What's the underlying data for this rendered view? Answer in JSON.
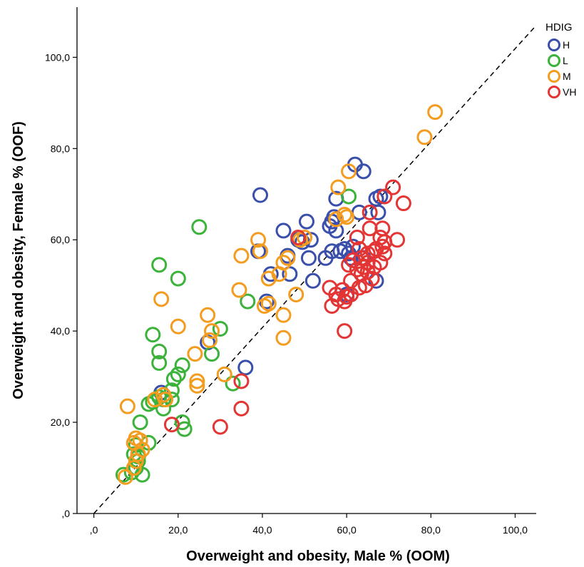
{
  "chart_data": {
    "type": "scatter",
    "xlabel": "Overweight and obesity, Male % (OOM)",
    "ylabel": "Overweight and obesity, Female % (OOF)",
    "xlim": [
      -4,
      105
    ],
    "ylim": [
      0,
      111
    ],
    "x_ticks": [
      ",0",
      "20,0",
      "40,0",
      "60,0",
      "80,0",
      "100,0"
    ],
    "y_ticks": [
      ",0",
      "20,0",
      "40,0",
      "60,0",
      "80,0",
      "100,0"
    ],
    "grid": false,
    "reference_line": {
      "style": "dashed",
      "from": [
        0,
        0
      ],
      "to": [
        105,
        107
      ]
    },
    "legend": {
      "title": "HDIG",
      "position": "top-right"
    },
    "series": [
      {
        "name": "H",
        "color": "#3a4eab",
        "points": [
          [
            62,
            76.5
          ],
          [
            64,
            75
          ],
          [
            67,
            69
          ],
          [
            68,
            69.5
          ],
          [
            57.5,
            69
          ],
          [
            39.5,
            69.8
          ],
          [
            63,
            66
          ],
          [
            67.5,
            66
          ],
          [
            57,
            65
          ],
          [
            56.5,
            64
          ],
          [
            50.5,
            64
          ],
          [
            56,
            63
          ],
          [
            57.5,
            62
          ],
          [
            45,
            62
          ],
          [
            48.5,
            60
          ],
          [
            51.5,
            60
          ],
          [
            49.5,
            59.5
          ],
          [
            61.5,
            58.5
          ],
          [
            59.5,
            58
          ],
          [
            39,
            57.5
          ],
          [
            56.5,
            57.5
          ],
          [
            58.5,
            57.5
          ],
          [
            60.5,
            57
          ],
          [
            46,
            56.5
          ],
          [
            51,
            56
          ],
          [
            55,
            56
          ],
          [
            61,
            56
          ],
          [
            64,
            56
          ],
          [
            42,
            52.5
          ],
          [
            46.5,
            52.5
          ],
          [
            52,
            51
          ],
          [
            67,
            51
          ],
          [
            41,
            46.5
          ],
          [
            60,
            48
          ],
          [
            36,
            32
          ],
          [
            27,
            37.5
          ],
          [
            16,
            26.5
          ]
        ]
      },
      {
        "name": "L",
        "color": "#3bb33b",
        "points": [
          [
            25,
            62.8
          ],
          [
            15.5,
            54.5
          ],
          [
            20,
            51.5
          ],
          [
            60.5,
            69.5
          ],
          [
            36.5,
            46.5
          ],
          [
            14,
            39.2
          ],
          [
            30,
            40.5
          ],
          [
            28,
            35
          ],
          [
            15.5,
            35.5
          ],
          [
            15.5,
            33
          ],
          [
            21,
            32.5
          ],
          [
            20,
            30.5
          ],
          [
            19,
            29.5
          ],
          [
            18.5,
            27
          ],
          [
            15.5,
            25.5
          ],
          [
            18.5,
            25
          ],
          [
            16.5,
            25
          ],
          [
            14,
            24.5
          ],
          [
            13,
            24
          ],
          [
            16.5,
            23
          ],
          [
            13,
            15.5
          ],
          [
            11,
            20
          ],
          [
            21,
            20
          ],
          [
            21.5,
            18.5
          ],
          [
            10,
            15
          ],
          [
            9.5,
            13
          ],
          [
            10.5,
            11.5
          ],
          [
            10,
            10
          ],
          [
            9,
            9
          ],
          [
            7,
            8.5
          ],
          [
            11.5,
            8.5
          ],
          [
            33,
            28.5
          ],
          [
            10.5,
            12.5
          ]
        ]
      },
      {
        "name": "M",
        "color": "#f39c1f",
        "points": [
          [
            81,
            88
          ],
          [
            78.5,
            82.5
          ],
          [
            60.5,
            75
          ],
          [
            58,
            71.5
          ],
          [
            59.5,
            65.5
          ],
          [
            57.5,
            64.5
          ],
          [
            60,
            65
          ],
          [
            39,
            60
          ],
          [
            49,
            60
          ],
          [
            50,
            60.5
          ],
          [
            39.5,
            57.5
          ],
          [
            35,
            56.5
          ],
          [
            46,
            56
          ],
          [
            45,
            55
          ],
          [
            44,
            52.5
          ],
          [
            41.5,
            51.5
          ],
          [
            34.5,
            49
          ],
          [
            48,
            48
          ],
          [
            40.5,
            45.5
          ],
          [
            41.5,
            46
          ],
          [
            45,
            43.5
          ],
          [
            27,
            43.5
          ],
          [
            16,
            47
          ],
          [
            20,
            41
          ],
          [
            28,
            40
          ],
          [
            27.5,
            38
          ],
          [
            45,
            38.5
          ],
          [
            24,
            35
          ],
          [
            31,
            30.5
          ],
          [
            24.5,
            29
          ],
          [
            24.5,
            28
          ],
          [
            16.5,
            26
          ],
          [
            14.5,
            25
          ],
          [
            17,
            25
          ],
          [
            8,
            23.5
          ],
          [
            10,
            16.5
          ],
          [
            11,
            16
          ],
          [
            9.5,
            15.5
          ],
          [
            11.5,
            14
          ],
          [
            10.5,
            13
          ],
          [
            10,
            11.5
          ],
          [
            9.5,
            10
          ],
          [
            7.5,
            8
          ]
        ]
      },
      {
        "name": "VH",
        "color": "#e43535",
        "points": [
          [
            71,
            71.5
          ],
          [
            69,
            69.5
          ],
          [
            73.5,
            68
          ],
          [
            65.5,
            66
          ],
          [
            68.5,
            62.5
          ],
          [
            65.5,
            62.5
          ],
          [
            62.5,
            60.5
          ],
          [
            68,
            60.5
          ],
          [
            72,
            60
          ],
          [
            69,
            59.5
          ],
          [
            67,
            58
          ],
          [
            68.5,
            58.5
          ],
          [
            63,
            58
          ],
          [
            66.5,
            57.5
          ],
          [
            65,
            57
          ],
          [
            69,
            57
          ],
          [
            63.5,
            56
          ],
          [
            61.5,
            55.5
          ],
          [
            65,
            55
          ],
          [
            68,
            55
          ],
          [
            60.5,
            54.5
          ],
          [
            64,
            54
          ],
          [
            66.5,
            54
          ],
          [
            62.5,
            53.5
          ],
          [
            65,
            53
          ],
          [
            63.5,
            52.5
          ],
          [
            66,
            51.5
          ],
          [
            61,
            51
          ],
          [
            64.5,
            50
          ],
          [
            63,
            49.5
          ],
          [
            59,
            49
          ],
          [
            61,
            48
          ],
          [
            56,
            49.5
          ],
          [
            57.5,
            48
          ],
          [
            60,
            47.5
          ],
          [
            58,
            47
          ],
          [
            59.5,
            46.5
          ],
          [
            56.5,
            45.5
          ],
          [
            59.5,
            40
          ],
          [
            35,
            29
          ],
          [
            35,
            23
          ],
          [
            30,
            19
          ],
          [
            18.5,
            19.5
          ],
          [
            48.5,
            60.5
          ]
        ]
      }
    ]
  }
}
